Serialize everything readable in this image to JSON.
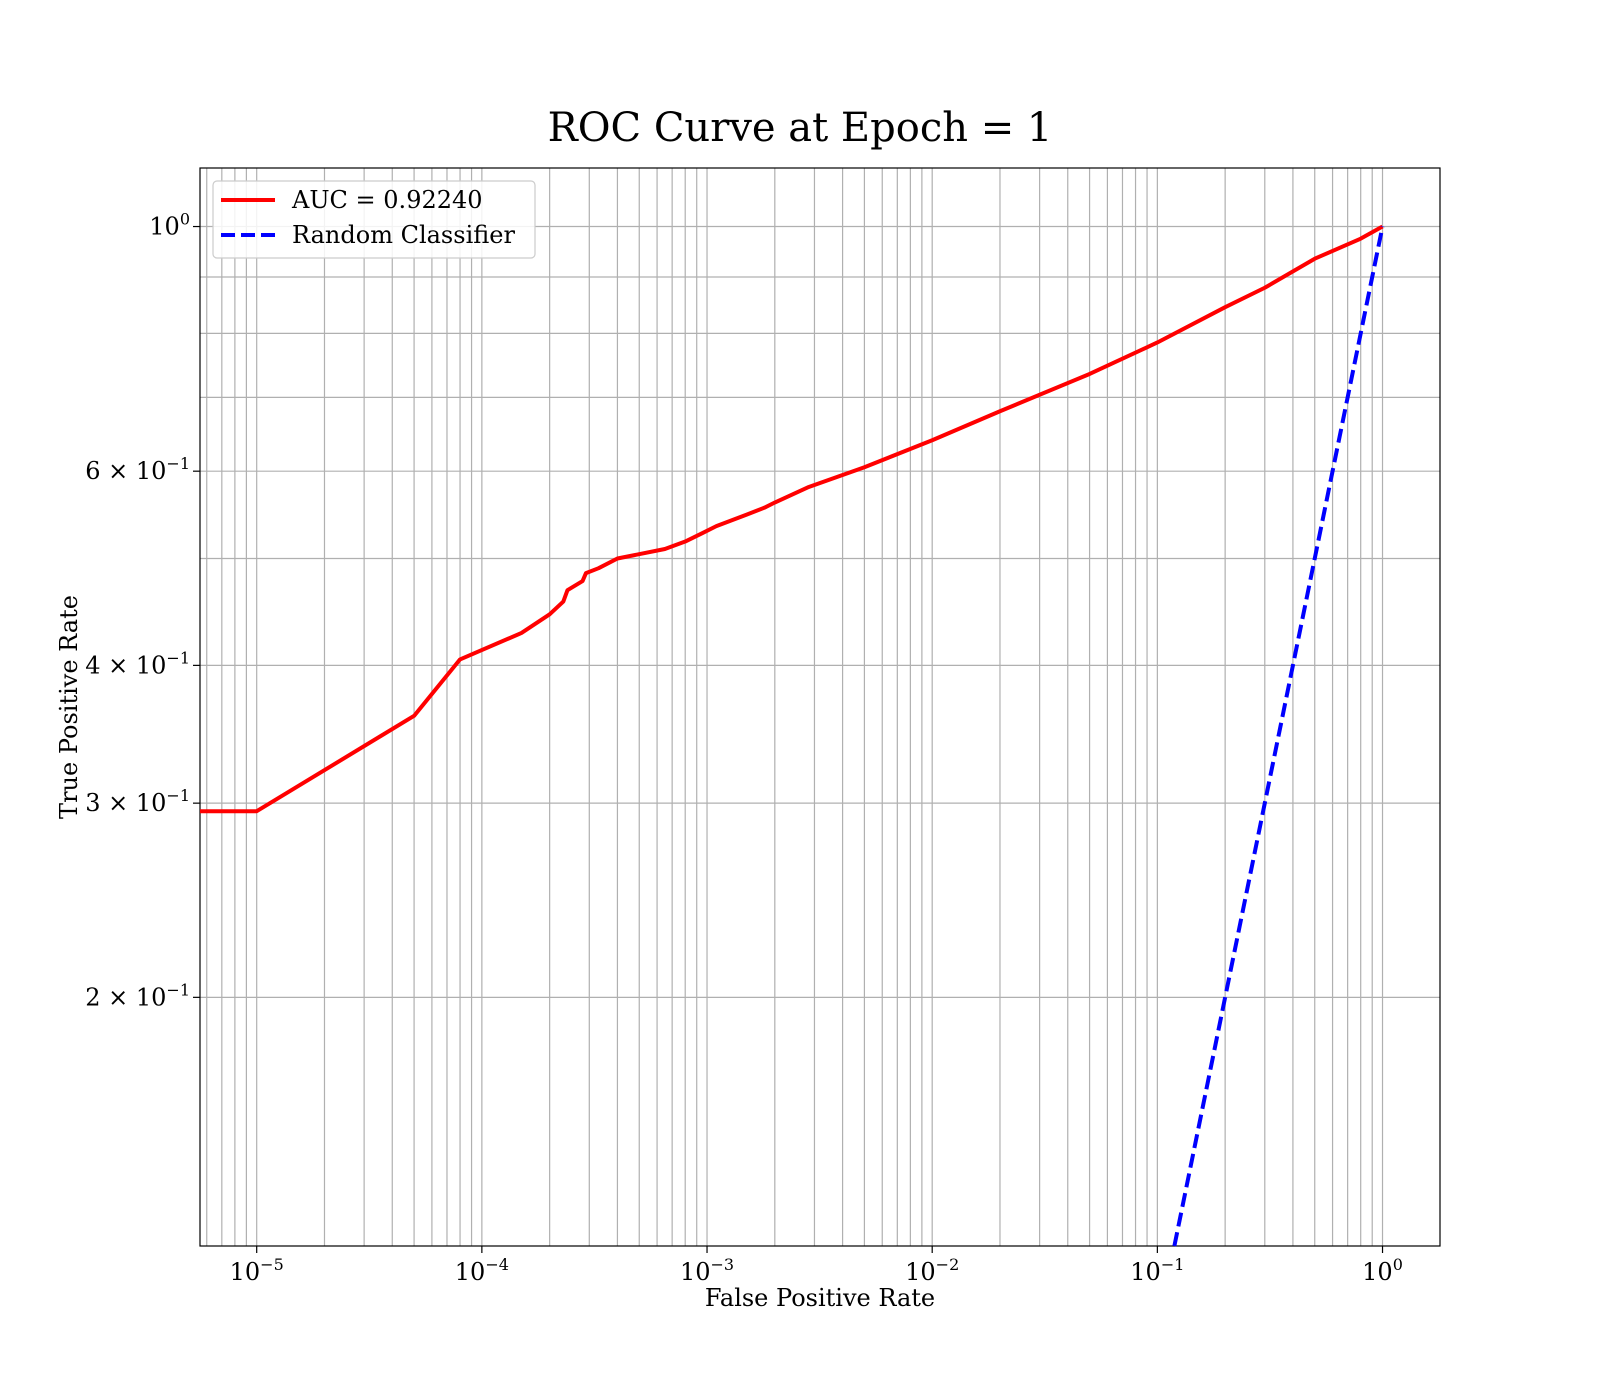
{
  "chart_data": {
    "type": "line",
    "title": "ROC Curve at Epoch = 1",
    "xlabel": "False Positive Rate",
    "ylabel": "True Positive Rate",
    "xscale": "log",
    "yscale": "log",
    "xlim": [
      5.6e-06,
      1.8
    ],
    "ylim": [
      0.119,
      1.13
    ],
    "grid": "on (major and minor)",
    "legend_position": "top-left",
    "x_ticks": [
      {
        "value": 1e-05,
        "base": "10",
        "exp": "−5"
      },
      {
        "value": 0.0001,
        "base": "10",
        "exp": "−4"
      },
      {
        "value": 0.001,
        "base": "10",
        "exp": "−3"
      },
      {
        "value": 0.01,
        "base": "10",
        "exp": "−2"
      },
      {
        "value": 0.1,
        "base": "10",
        "exp": "−1"
      },
      {
        "value": 1,
        "base": "10",
        "exp": "0"
      }
    ],
    "y_ticks": [
      {
        "value": 1.0,
        "base": "10",
        "exp": "0"
      },
      {
        "value": 0.6,
        "base": "6 × 10",
        "exp": "−1"
      },
      {
        "value": 0.4,
        "base": "4 × 10",
        "exp": "−1"
      },
      {
        "value": 0.3,
        "base": "3 × 10",
        "exp": "−1"
      },
      {
        "value": 0.2,
        "base": "2 × 10",
        "exp": "−1"
      }
    ],
    "series": [
      {
        "name": "AUC = 0.92240",
        "color": "#ff0000",
        "style": "solid",
        "x": [
          5.6e-06,
          1e-05,
          5e-05,
          8e-05,
          0.00015,
          0.0002,
          0.00023,
          0.00024,
          0.00028,
          0.00029,
          0.00033,
          0.0004,
          0.00065,
          0.0008,
          0.00095,
          0.0011,
          0.0015,
          0.0018,
          0.002,
          0.0028,
          0.005,
          0.01,
          0.02,
          0.05,
          0.1,
          0.2,
          0.3,
          0.5,
          0.8,
          1.0
        ],
        "y": [
          0.295,
          0.295,
          0.36,
          0.405,
          0.428,
          0.445,
          0.457,
          0.468,
          0.477,
          0.485,
          0.49,
          0.5,
          0.51,
          0.518,
          0.527,
          0.535,
          0.548,
          0.556,
          0.562,
          0.58,
          0.605,
          0.64,
          0.68,
          0.735,
          0.785,
          0.845,
          0.88,
          0.935,
          0.975,
          1.0
        ]
      },
      {
        "name": "Random Classifier",
        "color": "#0000ff",
        "style": "dashed",
        "x": [
          0.119,
          1.0
        ],
        "y": [
          0.119,
          1.0
        ]
      }
    ]
  }
}
